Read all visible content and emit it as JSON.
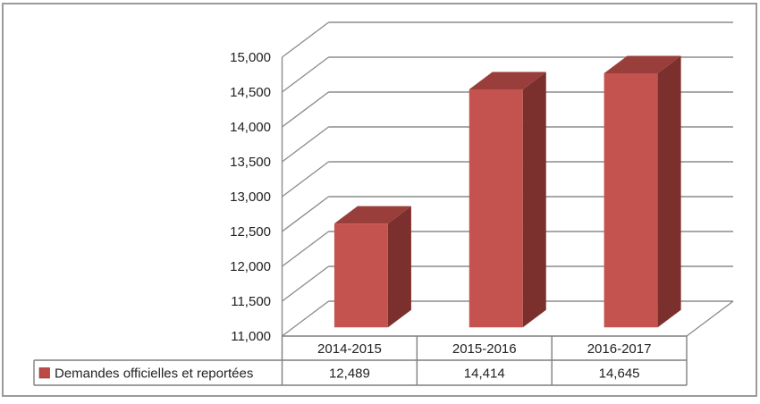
{
  "chart_data": {
    "type": "bar",
    "variant": "3d-column",
    "title": "",
    "xlabel": "",
    "ylabel": "",
    "grid": true,
    "data_table_attached": true,
    "categories": [
      "2014-2015",
      "2015-2016",
      "2016-2017"
    ],
    "series": [
      {
        "name": "Demandes officielles et reportées",
        "values": [
          12489,
          14414,
          14645
        ],
        "value_labels": [
          "12,489",
          "14,414",
          "14,645"
        ]
      }
    ],
    "y_axis": {
      "min": 11000,
      "max": 15000,
      "step": 500,
      "tick_labels": [
        "11,000",
        "11,500",
        "12,000",
        "12,500",
        "13,000",
        "13,500",
        "14,000",
        "14,500",
        "15,000"
      ]
    },
    "legend": {
      "position": "data-table-left",
      "label": "Demandes officielles et reportées"
    }
  },
  "colors": {
    "bar_front": "#C4534F",
    "bar_top": "#993E3A",
    "bar_side": "#7C302D",
    "legend_swatch": "#BE4A46",
    "gridline": "#8C8C8C",
    "table_border": "#7F7F7F",
    "outer_border": "#9B9B9B",
    "text": "#212121",
    "background": "#FFFFFF"
  }
}
